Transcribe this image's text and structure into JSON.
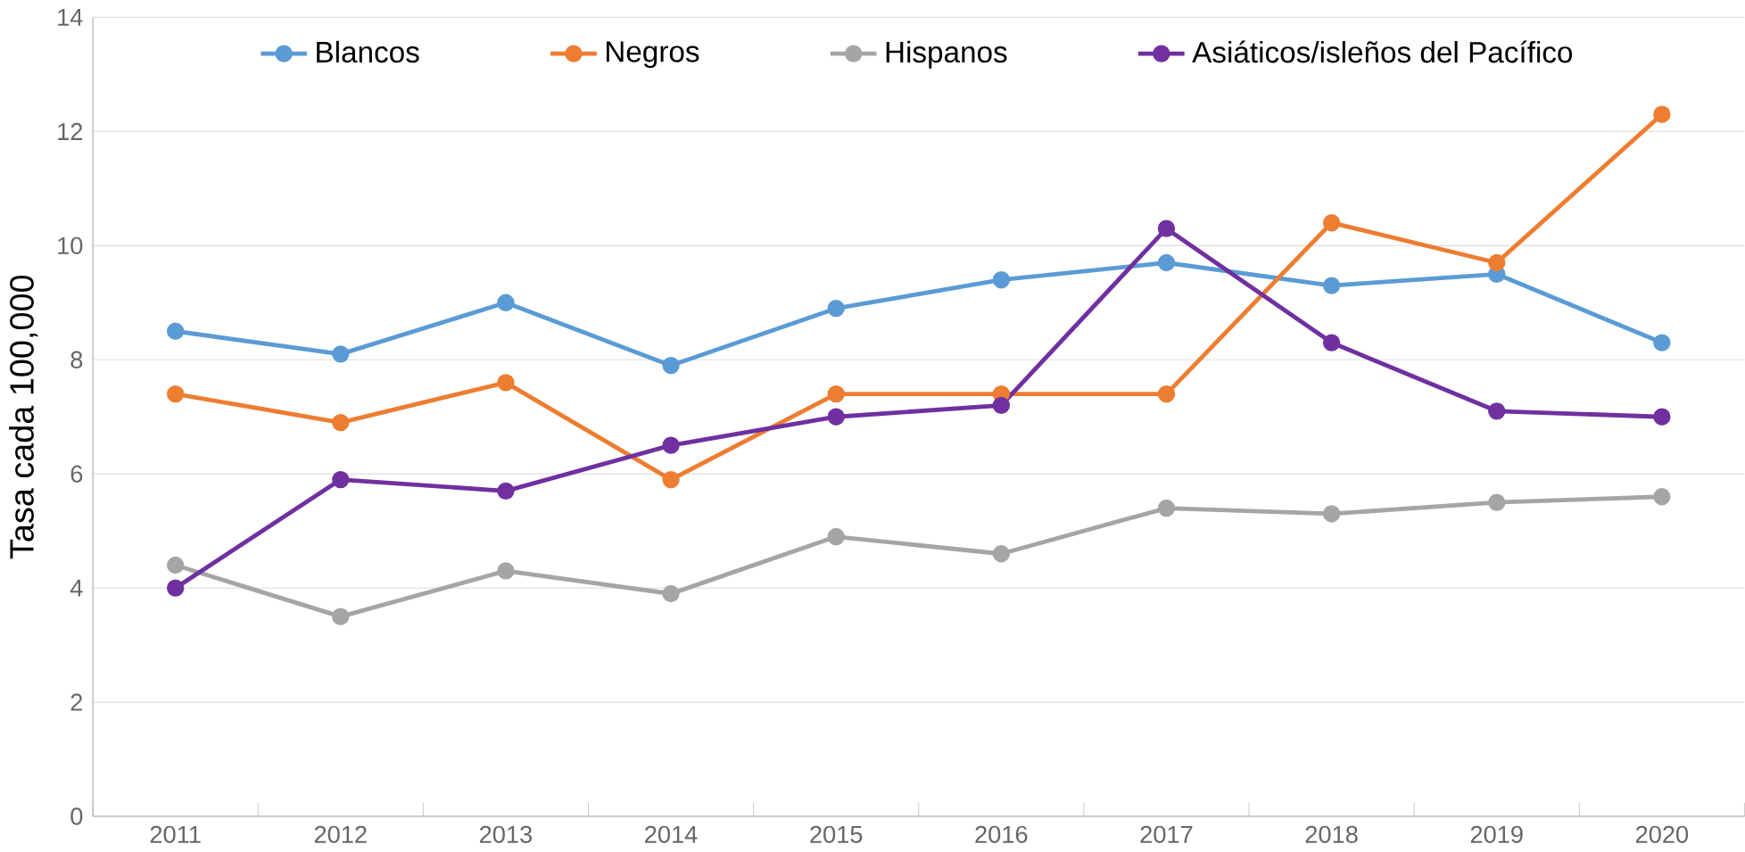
{
  "chart_data": {
    "type": "line",
    "ylabel": "Tasa cada 100,000",
    "categories": [
      "2011",
      "2012",
      "2013",
      "2014",
      "2015",
      "2016",
      "2017",
      "2018",
      "2019",
      "2020"
    ],
    "series": [
      {
        "name": "Blancos",
        "color": "#5b9bd5",
        "values": [
          8.5,
          8.1,
          9.0,
          7.9,
          8.9,
          9.4,
          9.7,
          9.3,
          9.5,
          8.3
        ]
      },
      {
        "name": "Negros",
        "color": "#ed7d31",
        "values": [
          7.4,
          6.9,
          7.6,
          5.9,
          7.4,
          7.4,
          7.4,
          10.4,
          9.7,
          12.3
        ]
      },
      {
        "name": "Hispanos",
        "color": "#a5a5a5",
        "values": [
          4.4,
          3.5,
          4.3,
          3.9,
          4.9,
          4.6,
          5.4,
          5.3,
          5.5,
          5.6
        ]
      },
      {
        "name": "Asiáticos/isleños del Pacífico",
        "color": "#7030a0",
        "values": [
          4.0,
          5.9,
          5.7,
          6.5,
          7.0,
          7.2,
          10.3,
          8.3,
          7.1,
          7.0
        ]
      }
    ],
    "ylim": [
      0,
      14
    ],
    "yticks": [
      0,
      2,
      4,
      6,
      8,
      10,
      12,
      14
    ],
    "grid": "y",
    "legend": "top",
    "marker": "circle",
    "line_style": "solid"
  }
}
